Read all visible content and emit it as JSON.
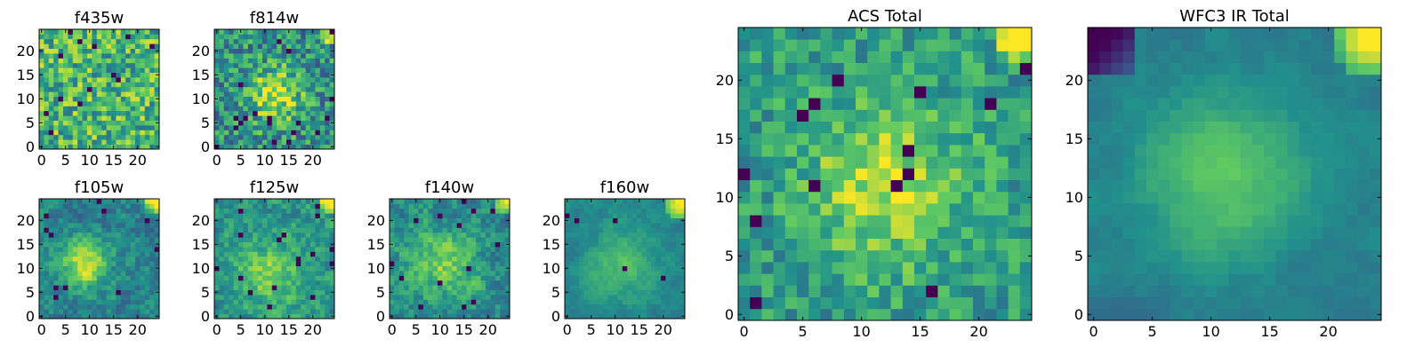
{
  "figure": {
    "title": ""
  },
  "colormap": [
    "#440154",
    "#3b528b",
    "#21918c",
    "#5ec962",
    "#fde725"
  ],
  "chart_data": [
    {
      "type": "heatmap",
      "title": "f435w",
      "xticks": [
        0,
        5,
        10,
        15,
        20
      ],
      "yticks": [
        0,
        5,
        10,
        15,
        20
      ],
      "xlim": [
        0,
        25
      ],
      "ylim": [
        0,
        25
      ],
      "grid_size": 25,
      "model": {
        "base": 0.66,
        "noise": 0.28,
        "centers": [],
        "corner": 0.0,
        "cornerRadius": 3,
        "seed": 11,
        "holes": 0.03,
        "smooth": 0
      }
    },
    {
      "type": "heatmap",
      "title": "f814w",
      "xticks": [
        0,
        5,
        10,
        15,
        20
      ],
      "yticks": [
        0,
        5,
        10,
        15,
        20
      ],
      "xlim": [
        0,
        25
      ],
      "ylim": [
        0,
        25
      ],
      "grid_size": 25,
      "model": {
        "base": 0.5,
        "noise": 0.26,
        "centers": [
          {
            "x": 12,
            "y": 11,
            "amp": 0.42,
            "sigma": 4
          }
        ],
        "corner": 0.55,
        "cornerRadius": 3,
        "seed": 23,
        "holes": 0.025,
        "smooth": 0
      }
    },
    {
      "type": "heatmap",
      "title": "f105w",
      "xticks": [
        0,
        5,
        10,
        15,
        20
      ],
      "yticks": [
        0,
        5,
        10,
        15,
        20
      ],
      "xlim": [
        0,
        25
      ],
      "ylim": [
        0,
        25
      ],
      "grid_size": 25,
      "model": {
        "base": 0.44,
        "noise": 0.22,
        "centers": [
          {
            "x": 9,
            "y": 11,
            "amp": 0.5,
            "sigma": 3.5
          }
        ],
        "corner": 0.65,
        "cornerRadius": 3,
        "seed": 37,
        "holes": 0.02,
        "smooth": 1
      }
    },
    {
      "type": "heatmap",
      "title": "f125w",
      "xticks": [
        0,
        5,
        10,
        15,
        20
      ],
      "yticks": [
        0,
        5,
        10,
        15,
        20
      ],
      "xlim": [
        0,
        25
      ],
      "ylim": [
        0,
        25
      ],
      "grid_size": 25,
      "model": {
        "base": 0.5,
        "noise": 0.24,
        "centers": [
          {
            "x": 11,
            "y": 9,
            "amp": 0.3,
            "sigma": 5
          }
        ],
        "corner": 0.6,
        "cornerRadius": 3,
        "seed": 41,
        "holes": 0.02,
        "smooth": 1
      }
    },
    {
      "type": "heatmap",
      "title": "f140w",
      "xticks": [
        0,
        5,
        10,
        15,
        20
      ],
      "yticks": [
        0,
        5,
        10,
        15,
        20
      ],
      "xlim": [
        0,
        25
      ],
      "ylim": [
        0,
        25
      ],
      "grid_size": 25,
      "model": {
        "base": 0.48,
        "noise": 0.24,
        "centers": [
          {
            "x": 11,
            "y": 11,
            "amp": 0.3,
            "sigma": 5
          }
        ],
        "corner": 0.6,
        "cornerRadius": 3,
        "seed": 53,
        "holes": 0.03,
        "smooth": 1
      }
    },
    {
      "type": "heatmap",
      "title": "f160w",
      "xticks": [
        0,
        5,
        10,
        15,
        20
      ],
      "yticks": [
        0,
        5,
        10,
        15,
        20
      ],
      "xlim": [
        0,
        25
      ],
      "ylim": [
        0,
        25
      ],
      "grid_size": 25,
      "model": {
        "base": 0.46,
        "noise": 0.16,
        "centers": [
          {
            "x": 11,
            "y": 11,
            "amp": 0.24,
            "sigma": 5
          }
        ],
        "corner": 0.6,
        "cornerRadius": 4,
        "seed": 67,
        "holes": 0.01,
        "smooth": 2
      }
    },
    {
      "type": "heatmap",
      "title": "ACS Total",
      "xticks": [
        0,
        5,
        10,
        15,
        20
      ],
      "yticks": [
        0,
        5,
        10,
        15,
        20
      ],
      "xlim": [
        0,
        25
      ],
      "ylim": [
        0,
        25
      ],
      "grid_size": 25,
      "model": {
        "base": 0.55,
        "noise": 0.18,
        "centers": [
          {
            "x": 12,
            "y": 11,
            "amp": 0.35,
            "sigma": 4.5
          }
        ],
        "corner": 0.55,
        "cornerRadius": 3,
        "seed": 79,
        "holes": 0.03,
        "smooth": 0
      }
    },
    {
      "type": "heatmap",
      "title": "WFC3 IR Total",
      "xticks": [
        0,
        5,
        10,
        15,
        20
      ],
      "yticks": [
        0,
        5,
        10,
        15,
        20
      ],
      "xlim": [
        0,
        25
      ],
      "ylim": [
        0,
        25
      ],
      "grid_size": 25,
      "model": {
        "base": 0.42,
        "noise": 0.1,
        "centers": [
          {
            "x": 11,
            "y": 12,
            "amp": 0.32,
            "sigma": 5
          }
        ],
        "corner": 0.7,
        "cornerRadius": 4,
        "seed": 97,
        "holes": 0.0,
        "smooth": 2,
        "darkCorner": true
      }
    }
  ]
}
